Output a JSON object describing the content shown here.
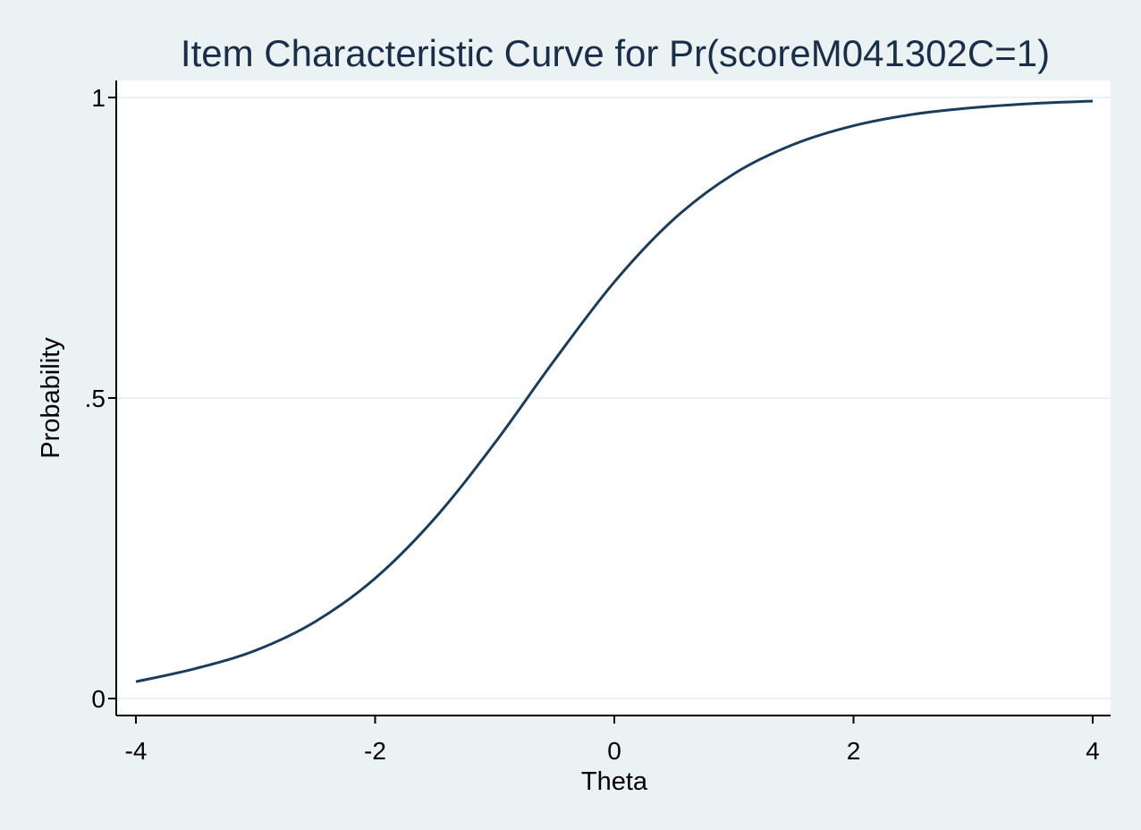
{
  "chart_data": {
    "type": "line",
    "title": "Item Characteristic Curve for Pr(scoreM041302C=1)",
    "xlabel": "Theta",
    "ylabel": "Probability",
    "xlim": [
      -4,
      4
    ],
    "ylim": [
      0,
      1
    ],
    "x_ticks": [
      -4,
      -2,
      0,
      2,
      4
    ],
    "x_tick_labels": [
      "-4",
      "-2",
      "0",
      "2",
      "4"
    ],
    "y_ticks": [
      0,
      0.5,
      1
    ],
    "y_tick_labels": [
      "0",
      ".5",
      "1"
    ],
    "grid": true,
    "legend": "none",
    "series": [
      {
        "x": [
          -4,
          -3.5,
          -3,
          -2.5,
          -2,
          -1.5,
          -1,
          -0.5,
          0,
          0.5,
          1,
          1.5,
          2,
          2.5,
          3,
          3.5,
          4
        ],
        "values": [
          0.028,
          0.05,
          0.08,
          0.128,
          0.2,
          0.3,
          0.425,
          0.563,
          0.693,
          0.798,
          0.873,
          0.922,
          0.953,
          0.972,
          0.983,
          0.99,
          0.994
        ],
        "color": "#1a3d5c"
      }
    ]
  },
  "colors": {
    "background": "#eaf2f3",
    "plot_region": "#ffffff",
    "title": "#1a2e4a",
    "line": "#1a3d5c"
  }
}
